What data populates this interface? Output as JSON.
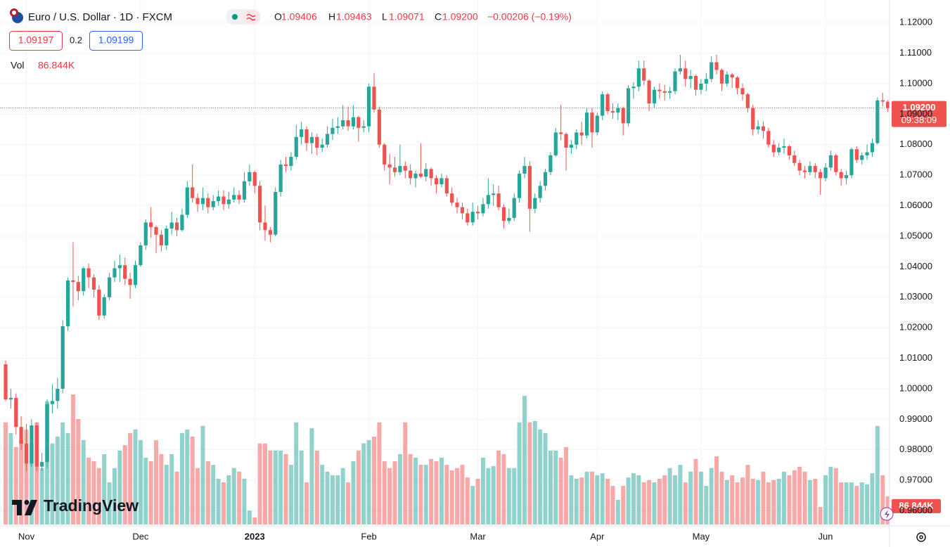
{
  "title": "Euro / U.S. Dollar · 1D · FXCM",
  "ohlc_letters": [
    "O",
    "H",
    "L",
    "C"
  ],
  "change": "−0.00206 (−0.19%)",
  "bid": "1.09197",
  "spread": "0.2",
  "ask": "1.09199",
  "volume_title": "Vol",
  "watermark": "TradingView",
  "chart_data": {
    "type": "candlestick",
    "up_color": "#26a69a",
    "down_color": "#ef5350",
    "grid": true,
    "ylim": [
      0.9546,
      1.1274
    ],
    "yticks": [
      {
        "value": 0.96,
        "label": "0.96000"
      },
      {
        "value": 0.97,
        "label": "0.97000"
      },
      {
        "value": 0.98,
        "label": "0.98000"
      },
      {
        "value": 0.99,
        "label": "0.99000"
      },
      {
        "value": 1.0,
        "label": "1.00000"
      },
      {
        "value": 1.01,
        "label": "1.01000"
      },
      {
        "value": 1.02,
        "label": "1.02000"
      },
      {
        "value": 1.03,
        "label": "1.03000"
      },
      {
        "value": 1.04,
        "label": "1.04000"
      },
      {
        "value": 1.05,
        "label": "1.05000"
      },
      {
        "value": 1.06,
        "label": "1.06000"
      },
      {
        "value": 1.07,
        "label": "1.07000"
      },
      {
        "value": 1.08,
        "label": "1.08000"
      },
      {
        "value": 1.09,
        "label": "1.09000"
      },
      {
        "value": 1.1,
        "label": "1.10000"
      },
      {
        "value": 1.11,
        "label": "1.11000"
      },
      {
        "value": 1.12,
        "label": "1.12000"
      }
    ],
    "close_label": "1.09200",
    "countdown": "09:38:09",
    "volume_label": "86.844K",
    "categories": [
      null,
      null,
      null,
      null,
      "Nov",
      null,
      null,
      null,
      null,
      null,
      null,
      null,
      null,
      null,
      null,
      null,
      null,
      null,
      null,
      null,
      null,
      null,
      null,
      null,
      null,
      null,
      "Dec",
      null,
      null,
      null,
      null,
      null,
      null,
      null,
      null,
      null,
      null,
      null,
      null,
      null,
      null,
      null,
      null,
      null,
      null,
      null,
      null,
      null,
      "2023",
      null,
      null,
      null,
      null,
      null,
      null,
      null,
      null,
      null,
      null,
      null,
      null,
      null,
      null,
      null,
      null,
      null,
      null,
      null,
      null,
      null,
      "Feb",
      null,
      null,
      null,
      null,
      null,
      null,
      null,
      null,
      null,
      null,
      null,
      null,
      null,
      null,
      null,
      null,
      null,
      null,
      null,
      null,
      "Mar",
      null,
      null,
      null,
      null,
      null,
      null,
      null,
      null,
      null,
      null,
      null,
      null,
      null,
      null,
      null,
      null,
      null,
      null,
      null,
      null,
      null,
      null,
      "Apr",
      null,
      null,
      null,
      null,
      null,
      null,
      null,
      null,
      null,
      null,
      null,
      null,
      null,
      null,
      null,
      null,
      null,
      null,
      null,
      "May",
      null,
      null,
      null,
      null,
      null,
      null,
      null,
      null,
      null,
      null,
      null,
      null,
      null,
      null,
      null,
      null,
      null,
      null,
      null,
      null,
      null,
      null,
      null,
      "Jun",
      null,
      null,
      null,
      null,
      null,
      null,
      null,
      null,
      null,
      null,
      null,
      null
    ],
    "open": [
      1.008,
      0.9965,
      0.997,
      0.9875,
      0.982,
      0.9755,
      0.988,
      0.9745,
      0.976,
      0.995,
      0.996,
      1.0,
      1.0205,
      1.0355,
      1.035,
      1.032,
      1.0395,
      1.0365,
      1.0325,
      1.024,
      1.03,
      1.0365,
      1.0395,
      1.0405,
      1.036,
      1.034,
      1.0405,
      1.047,
      1.0545,
      1.053,
      1.0505,
      1.047,
      1.0525,
      1.0545,
      1.052,
      1.057,
      1.066,
      1.0625,
      1.0605,
      1.0625,
      1.0595,
      1.0615,
      1.063,
      1.0605,
      1.062,
      1.0635,
      1.062,
      1.068,
      1.071,
      1.0665,
      1.0545,
      1.052,
      1.0505,
      1.0645,
      1.0735,
      1.073,
      1.076,
      1.0825,
      1.085,
      1.0805,
      1.0825,
      1.079,
      1.08,
      1.0835,
      1.0855,
      1.086,
      1.088,
      1.086,
      1.089,
      1.0855,
      1.086,
      1.099,
      1.0915,
      1.08,
      1.0735,
      1.0725,
      1.071,
      1.073,
      1.0715,
      1.069,
      1.0705,
      1.0695,
      1.072,
      1.069,
      1.067,
      1.069,
      1.064,
      1.061,
      1.0595,
      1.0575,
      1.0545,
      1.058,
      1.0575,
      1.0605,
      1.0635,
      1.064,
      1.0595,
      1.055,
      1.056,
      1.0625,
      1.0705,
      1.073,
      1.059,
      1.0625,
      1.0665,
      1.071,
      1.0765,
      1.084,
      1.0835,
      1.079,
      1.08,
      1.084,
      1.083,
      1.0905,
      1.084,
      1.0895,
      1.0965,
      1.091,
      1.0905,
      1.092,
      1.087,
      1.0985,
      1.099,
      1.105,
      1.101,
      1.0935,
      1.098,
      1.0975,
      1.097,
      1.0975,
      1.104,
      1.105,
      1.1015,
      1.1025,
      1.098,
      1.1,
      1.1015,
      1.107,
      1.1045,
      1.1,
      1.103,
      1.102,
      1.0985,
      1.0965,
      1.092,
      1.085,
      1.086,
      1.0845,
      1.08,
      1.0775,
      1.079,
      1.0795,
      1.0765,
      1.074,
      1.0715,
      1.071,
      1.073,
      1.071,
      1.069,
      1.0725,
      1.0765,
      1.071,
      1.069,
      1.07,
      1.0785,
      1.075,
      1.0765,
      1.0775,
      1.0805,
      1.0945,
      1.09406
    ],
    "high": [
      1.0093,
      1.0,
      0.9985,
      0.991,
      0.9885,
      0.99,
      0.989,
      0.979,
      0.9965,
      1.0015,
      1.0035,
      1.0225,
      1.0365,
      1.048,
      1.037,
      1.04,
      1.041,
      1.0375,
      1.034,
      1.031,
      1.038,
      1.042,
      1.044,
      1.043,
      1.038,
      1.042,
      1.048,
      1.0555,
      1.0595,
      1.0535,
      1.052,
      1.0535,
      1.058,
      1.056,
      1.059,
      1.068,
      1.0735,
      1.064,
      1.066,
      1.064,
      1.0635,
      1.065,
      1.065,
      1.0645,
      1.066,
      1.065,
      1.071,
      1.0735,
      1.0715,
      1.068,
      1.06,
      1.053,
      1.066,
      1.075,
      1.076,
      1.0775,
      1.0865,
      1.0875,
      1.086,
      1.084,
      1.0835,
      1.082,
      1.086,
      1.0885,
      1.089,
      1.093,
      1.0925,
      1.093,
      1.0895,
      1.088,
      1.1,
      1.1035,
      1.0925,
      1.0805,
      1.077,
      1.076,
      1.08,
      1.0745,
      1.0735,
      1.0715,
      1.0805,
      1.074,
      1.0725,
      1.07,
      1.0705,
      1.07,
      1.066,
      1.0625,
      1.061,
      1.059,
      1.061,
      1.06,
      1.0625,
      1.069,
      1.067,
      1.0665,
      1.0605,
      1.059,
      1.064,
      1.0715,
      1.076,
      1.0745,
      1.064,
      1.068,
      1.072,
      1.0775,
      1.0855,
      1.093,
      1.084,
      1.0815,
      1.085,
      1.0875,
      1.092,
      1.092,
      1.0905,
      1.0975,
      1.097,
      1.0935,
      1.0935,
      1.0925,
      1.0995,
      1.1005,
      1.1075,
      1.1075,
      1.1015,
      1.099,
      1.1,
      1.0995,
      1.099,
      1.105,
      1.1095,
      1.1075,
      1.1045,
      1.103,
      1.1015,
      1.1035,
      1.109,
      1.1095,
      1.105,
      1.104,
      1.1035,
      1.1025,
      1.1,
      1.097,
      1.093,
      1.088,
      1.0875,
      1.0855,
      1.0815,
      1.0805,
      1.082,
      1.08,
      1.078,
      1.075,
      1.073,
      1.0745,
      1.074,
      1.072,
      1.074,
      1.078,
      1.077,
      1.072,
      1.0715,
      1.079,
      1.0795,
      1.0775,
      1.08,
      1.082,
      1.0955,
      1.097,
      1.09463
    ],
    "low": [
      0.996,
      0.9935,
      0.985,
      0.98,
      0.973,
      0.9745,
      0.973,
      0.973,
      0.974,
      0.992,
      0.9935,
      0.9985,
      1.019,
      1.027,
      1.029,
      1.0305,
      1.033,
      1.03,
      1.0225,
      1.023,
      1.029,
      1.035,
      1.035,
      1.034,
      1.0295,
      1.033,
      1.04,
      1.0455,
      1.0495,
      1.0445,
      1.045,
      1.0455,
      1.0505,
      1.05,
      1.0515,
      1.056,
      1.061,
      1.058,
      1.0585,
      1.0575,
      1.0585,
      1.06,
      1.0585,
      1.059,
      1.061,
      1.0605,
      1.061,
      1.0665,
      1.064,
      1.052,
      1.0485,
      1.048,
      1.05,
      1.063,
      1.071,
      1.0715,
      1.075,
      1.08,
      1.078,
      1.077,
      1.0765,
      1.0775,
      1.079,
      1.0815,
      1.0835,
      1.085,
      1.0845,
      1.085,
      1.081,
      1.084,
      1.084,
      1.0905,
      1.079,
      1.0715,
      1.067,
      1.0695,
      1.07,
      1.069,
      1.067,
      1.066,
      1.069,
      1.068,
      1.0665,
      1.064,
      1.066,
      1.063,
      1.06,
      1.0575,
      1.0555,
      1.0535,
      1.0535,
      1.0555,
      1.0565,
      1.059,
      1.06,
      1.0585,
      1.0525,
      1.054,
      1.055,
      1.061,
      1.069,
      1.0515,
      1.0575,
      1.061,
      1.065,
      1.07,
      1.076,
      1.0815,
      1.0715,
      1.077,
      1.0785,
      1.08,
      1.082,
      1.079,
      1.083,
      1.088,
      1.09,
      1.0885,
      1.088,
      1.083,
      1.086,
      1.095,
      1.0975,
      1.0995,
      1.091,
      1.092,
      1.095,
      1.0945,
      1.095,
      1.0965,
      1.103,
      1.099,
      1.0985,
      1.096,
      1.0965,
      1.0975,
      1.1005,
      1.103,
      1.0975,
      1.099,
      1.0985,
      1.0965,
      1.0945,
      1.0905,
      1.083,
      1.0835,
      1.082,
      1.079,
      1.076,
      1.0765,
      1.077,
      1.075,
      1.073,
      1.07,
      1.069,
      1.07,
      1.069,
      1.0635,
      1.068,
      1.0715,
      1.07,
      1.0665,
      1.067,
      1.069,
      1.074,
      1.0735,
      1.075,
      1.076,
      1.08,
      1.0925,
      1.09071
    ],
    "close": [
      0.9965,
      0.997,
      0.9875,
      0.982,
      0.9755,
      0.988,
      0.9745,
      0.976,
      0.995,
      0.996,
      1.0,
      1.0205,
      1.0355,
      1.035,
      1.032,
      1.0395,
      1.0365,
      1.0325,
      1.024,
      1.03,
      1.0365,
      1.0395,
      1.0405,
      1.036,
      1.034,
      1.0405,
      1.047,
      1.0545,
      1.053,
      1.0505,
      1.047,
      1.0525,
      1.0545,
      1.052,
      1.057,
      1.066,
      1.0625,
      1.0605,
      1.0625,
      1.0595,
      1.0615,
      1.063,
      1.0605,
      1.062,
      1.0635,
      1.062,
      1.068,
      1.071,
      1.0665,
      1.0545,
      1.052,
      1.0505,
      1.0645,
      1.0735,
      1.073,
      1.076,
      1.0825,
      1.085,
      1.0805,
      1.0825,
      1.079,
      1.08,
      1.0835,
      1.0855,
      1.086,
      1.088,
      1.086,
      1.089,
      1.0855,
      1.086,
      1.099,
      1.0915,
      1.08,
      1.0735,
      1.0725,
      1.071,
      1.073,
      1.0715,
      1.069,
      1.0705,
      1.0695,
      1.072,
      1.069,
      1.067,
      1.069,
      1.064,
      1.061,
      1.0595,
      1.0575,
      1.0545,
      1.058,
      1.0575,
      1.0605,
      1.0635,
      1.064,
      1.0595,
      1.055,
      1.056,
      1.0625,
      1.0705,
      1.073,
      1.059,
      1.0625,
      1.0665,
      1.071,
      1.0765,
      1.084,
      1.0835,
      1.079,
      1.08,
      1.084,
      1.083,
      1.0905,
      1.084,
      1.0895,
      1.0965,
      1.091,
      1.0905,
      1.092,
      1.087,
      1.0985,
      1.099,
      1.105,
      1.101,
      1.0935,
      1.098,
      1.0975,
      1.097,
      1.0975,
      1.104,
      1.105,
      1.1015,
      1.1025,
      1.098,
      1.1,
      1.1015,
      1.107,
      1.1045,
      1.1,
      1.103,
      1.102,
      1.0985,
      1.0965,
      1.092,
      1.085,
      1.086,
      1.0845,
      1.08,
      1.0775,
      1.079,
      1.0795,
      1.0765,
      1.074,
      1.0715,
      1.071,
      1.073,
      1.071,
      1.069,
      1.0725,
      1.0765,
      1.071,
      1.069,
      1.07,
      1.0785,
      1.075,
      1.0765,
      1.0775,
      1.0805,
      1.0945,
      1.0941,
      1.092
    ],
    "volume": [
      315000,
      282000,
      239000,
      260000,
      293000,
      250000,
      315000,
      174000,
      380000,
      250000,
      271000,
      315000,
      282000,
      401000,
      325000,
      260000,
      206000,
      195000,
      174000,
      217000,
      130000,
      174000,
      228000,
      245000,
      282000,
      293000,
      260000,
      206000,
      195000,
      260000,
      217000,
      184000,
      217000,
      163000,
      282000,
      293000,
      271000,
      174000,
      304000,
      195000,
      184000,
      141000,
      130000,
      152000,
      174000,
      163000,
      141000,
      43000,
      22000,
      250000,
      250000,
      228000,
      228000,
      228000,
      217000,
      184000,
      315000,
      228000,
      130000,
      297000,
      228000,
      184000,
      163000,
      152000,
      152000,
      174000,
      130000,
      195000,
      228000,
      250000,
      260000,
      271000,
      315000,
      195000,
      174000,
      195000,
      217000,
      315000,
      217000,
      206000,
      184000,
      184000,
      202000,
      195000,
      206000,
      184000,
      167000,
      174000,
      184000,
      145000,
      119000,
      141000,
      206000,
      174000,
      180000,
      228000,
      217000,
      174000,
      174000,
      315000,
      397000,
      315000,
      319000,
      293000,
      282000,
      228000,
      228000,
      206000,
      239000,
      152000,
      141000,
      145000,
      163000,
      163000,
      152000,
      158000,
      141000,
      119000,
      76000,
      119000,
      145000,
      158000,
      152000,
      130000,
      137000,
      130000,
      141000,
      152000,
      174000,
      152000,
      184000,
      130000,
      163000,
      202000,
      163000,
      119000,
      174000,
      210000,
      163000,
      137000,
      152000,
      130000,
      145000,
      184000,
      141000,
      137000,
      163000,
      130000,
      137000,
      141000,
      163000,
      152000,
      167000,
      178000,
      163000,
      137000,
      141000,
      54000,
      152000,
      178000,
      174000,
      130000,
      130000,
      130000,
      119000,
      130000,
      124000,
      158000,
      304000,
      152000,
      86844
    ]
  }
}
